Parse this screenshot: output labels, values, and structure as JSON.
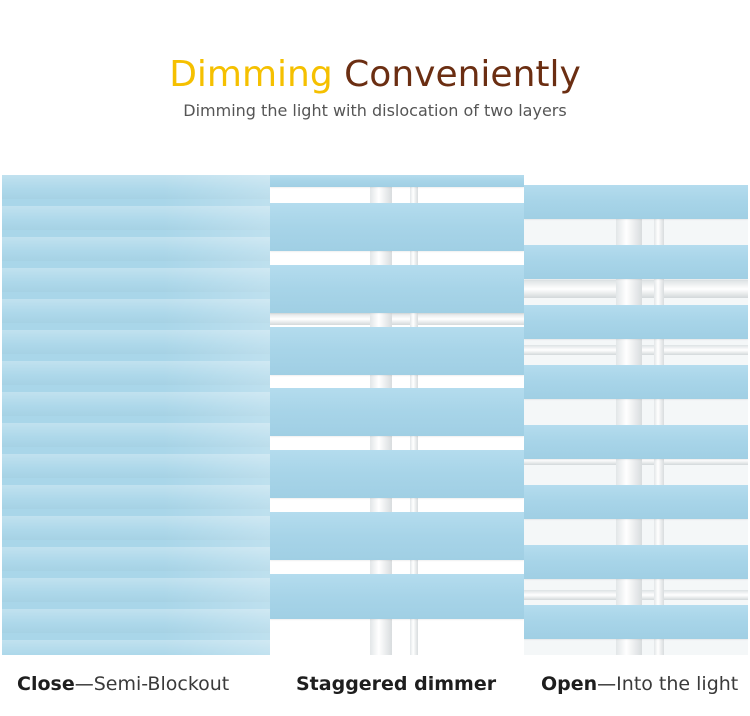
{
  "heading": {
    "title_part1": "Dimming",
    "title_part2": "Conveniently",
    "subtitle": "Dimming the light with dislocation of two layers"
  },
  "colors": {
    "accent_yellow": "#f5c000",
    "accent_brown": "#6b2e12",
    "fabric_blue": "#a9d6e9"
  },
  "panels": {
    "close": {
      "label_bold": "Close",
      "label_dash": "—",
      "label_rest": "Semi-Blockout"
    },
    "staggered": {
      "label": "Staggered dimmer"
    },
    "open": {
      "label_bold": "Open",
      "label_dash": "—",
      "label_rest": "Into the light"
    }
  }
}
